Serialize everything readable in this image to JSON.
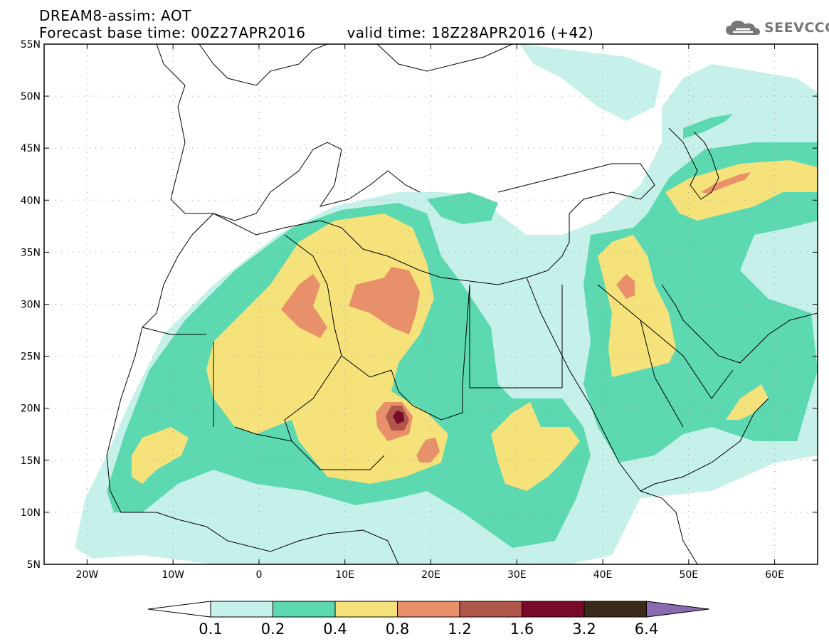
{
  "title": {
    "line1": "DREAM8-assim: AOT",
    "base_time": "Forecast base time: 00Z27APR2016",
    "valid_time": "valid time: 18Z28APR2016 (+42)"
  },
  "logo": {
    "text": "SEEVCCC",
    "icon": "cloud-icon"
  },
  "map": {
    "projection": "lat-lon",
    "lon_range": [
      -25,
      65
    ],
    "lat_range": [
      5,
      55
    ],
    "grid": true,
    "lat_ticks": [
      {
        "value": 55,
        "label": "55N"
      },
      {
        "value": 50,
        "label": "50N"
      },
      {
        "value": 45,
        "label": "45N"
      },
      {
        "value": 40,
        "label": "40N"
      },
      {
        "value": 35,
        "label": "35N"
      },
      {
        "value": 30,
        "label": "30N"
      },
      {
        "value": 25,
        "label": "25N"
      },
      {
        "value": 20,
        "label": "20N"
      },
      {
        "value": 15,
        "label": "15N"
      },
      {
        "value": 10,
        "label": "10N"
      },
      {
        "value": 5,
        "label": "5N"
      }
    ],
    "lon_ticks": [
      {
        "value": -20,
        "label": "20W"
      },
      {
        "value": -10,
        "label": "10W"
      },
      {
        "value": 0,
        "label": "0"
      },
      {
        "value": 10,
        "label": "10E"
      },
      {
        "value": 20,
        "label": "20E"
      },
      {
        "value": 30,
        "label": "30E"
      },
      {
        "value": 40,
        "label": "40E"
      },
      {
        "value": 50,
        "label": "50E"
      },
      {
        "value": 60,
        "label": "60E"
      }
    ]
  },
  "colorbar": {
    "colors": [
      "#c6f0ea",
      "#5cd9b0",
      "#f5e27a",
      "#e8906a",
      "#b0564a",
      "#7a0a2a",
      "#3a2a1a",
      "#8a6ab0"
    ],
    "labels": [
      "0.1",
      "0.2",
      "0.4",
      "0.8",
      "1.2",
      "1.6",
      "3.2",
      "6.4"
    ]
  }
}
